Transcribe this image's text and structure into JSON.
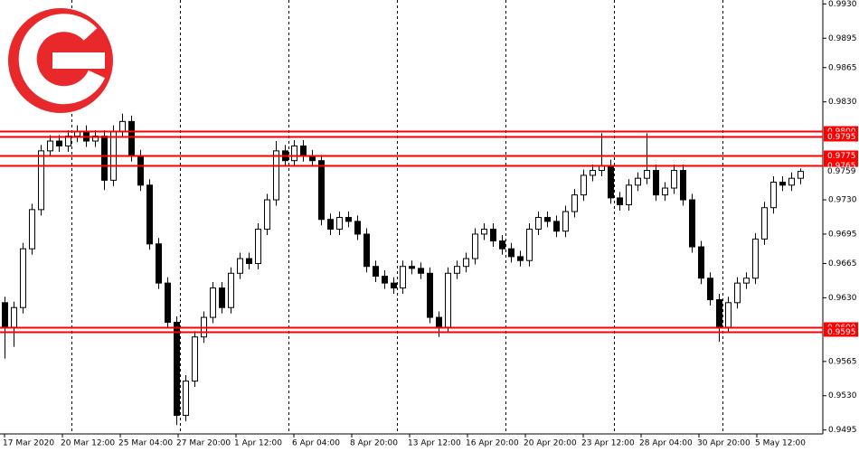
{
  "chart_data": {
    "type": "candlestick",
    "ylim": [
      0.9491,
      0.9934
    ],
    "xlim": [
      -0.5,
      90.5
    ],
    "yticks": [
      {
        "value": 0.993,
        "label": "0.9930"
      },
      {
        "value": 0.9895,
        "label": "0.9895"
      },
      {
        "value": 0.9865,
        "label": "0.9865"
      },
      {
        "value": 0.983,
        "label": "0.9830"
      },
      {
        "value": 0.973,
        "label": "0.9730"
      },
      {
        "value": 0.9695,
        "label": "0.9695"
      },
      {
        "value": 0.9665,
        "label": "0.9665"
      },
      {
        "value": 0.963,
        "label": "0.9630"
      },
      {
        "value": 0.9565,
        "label": "0.9565"
      },
      {
        "value": 0.953,
        "label": "0.9530"
      },
      {
        "value": 0.9495,
        "label": "0.9495"
      }
    ],
    "xticks": [
      {
        "value": 0,
        "label": "17 Mar 2020"
      },
      {
        "value": 6.4,
        "label": "20 Mar 12:00"
      },
      {
        "value": 12.8,
        "label": "25 Mar 04:00"
      },
      {
        "value": 19.2,
        "label": "27 Mar 20:00"
      },
      {
        "value": 25.6,
        "label": "1 Apr 12:00"
      },
      {
        "value": 32,
        "label": "6 Apr 04:00"
      },
      {
        "value": 38.4,
        "label": "8 Apr 20:00"
      },
      {
        "value": 44.8,
        "label": "13 Apr 12:00"
      },
      {
        "value": 51.2,
        "label": "16 Apr 20:00"
      },
      {
        "value": 57.6,
        "label": "20 Apr 20:00"
      },
      {
        "value": 64,
        "label": "23 Apr 12:00"
      },
      {
        "value": 70.4,
        "label": "28 Apr 04:00"
      },
      {
        "value": 76.8,
        "label": "30 Apr 20:00"
      },
      {
        "value": 83.2,
        "label": "5 May 12:00"
      }
    ],
    "xgrid": [
      7.4,
      19.4,
      31.4,
      43.4,
      55.4,
      67.4,
      79.4
    ],
    "levels": [
      {
        "value": 0.98,
        "label": "0.9800"
      },
      {
        "value": 0.9795,
        "label": "0.9795"
      },
      {
        "value": 0.9775,
        "label": "0.9775"
      },
      {
        "value": 0.9765,
        "label": "0.9765"
      },
      {
        "value": 0.96,
        "label": "0.9600"
      },
      {
        "value": 0.9595,
        "label": "0.9595"
      }
    ],
    "level_color": "#ff0000",
    "current_price": {
      "value": 0.9759,
      "label": "0.9759"
    },
    "open": [
      0.9625,
      0.96,
      0.962,
      0.968,
      0.972,
      0.978,
      0.979,
      0.9785,
      0.9795,
      0.98,
      0.979,
      0.9795,
      0.975,
      0.98,
      0.981,
      0.9775,
      0.9745,
      0.9685,
      0.9645,
      0.9605,
      0.951,
      0.9545,
      0.959,
      0.961,
      0.964,
      0.962,
      0.9655,
      0.967,
      0.9665,
      0.97,
      0.973,
      0.978,
      0.977,
      0.9785,
      0.9775,
      0.977,
      0.971,
      0.97,
      0.9712,
      0.9708,
      0.9695,
      0.9662,
      0.9652,
      0.9645,
      0.964,
      0.9662,
      0.966,
      0.9655,
      0.961,
      0.96,
      0.9655,
      0.9662,
      0.967,
      0.9695,
      0.97,
      0.9688,
      0.968,
      0.9672,
      0.9668,
      0.97,
      0.9712,
      0.9708,
      0.9698,
      0.9718,
      0.9735,
      0.9755,
      0.976,
      0.9765,
      0.9732,
      0.9725,
      0.9745,
      0.9752,
      0.976,
      0.9735,
      0.9742,
      0.976,
      0.973,
      0.9682,
      0.965,
      0.9628,
      0.96,
      0.9625,
      0.9645,
      0.965,
      0.969,
      0.9722,
      0.9748,
      0.9745,
      0.9752
    ],
    "high": [
      0.9631,
      0.9626,
      0.9686,
      0.9726,
      0.9786,
      0.9796,
      0.9796,
      0.9801,
      0.9806,
      0.9806,
      0.9801,
      0.9801,
      0.9806,
      0.9818,
      0.9816,
      0.9781,
      0.9751,
      0.9691,
      0.9651,
      0.9611,
      0.9551,
      0.9596,
      0.9616,
      0.9646,
      0.9646,
      0.9661,
      0.9676,
      0.9676,
      0.9706,
      0.9736,
      0.979,
      0.9786,
      0.9791,
      0.9791,
      0.9781,
      0.9776,
      0.9716,
      0.9718,
      0.9718,
      0.9714,
      0.9701,
      0.9668,
      0.9658,
      0.9651,
      0.9668,
      0.9668,
      0.9666,
      0.9661,
      0.9616,
      0.9661,
      0.9668,
      0.9676,
      0.9701,
      0.9706,
      0.9706,
      0.9694,
      0.9686,
      0.9678,
      0.9706,
      0.9718,
      0.9718,
      0.9714,
      0.9724,
      0.9741,
      0.9761,
      0.9766,
      0.9798,
      0.9771,
      0.9738,
      0.9751,
      0.9758,
      0.9798,
      0.9766,
      0.9748,
      0.9766,
      0.9766,
      0.9736,
      0.9688,
      0.9656,
      0.9634,
      0.9631,
      0.9651,
      0.9656,
      0.9696,
      0.9728,
      0.9754,
      0.9754,
      0.9758,
      0.9762
    ],
    "low": [
      0.9568,
      0.958,
      0.9614,
      0.9674,
      0.9714,
      0.9774,
      0.9779,
      0.9779,
      0.9789,
      0.9784,
      0.9784,
      0.974,
      0.9744,
      0.9794,
      0.9769,
      0.9739,
      0.9679,
      0.9639,
      0.9599,
      0.95,
      0.9504,
      0.9539,
      0.9584,
      0.9604,
      0.9614,
      0.9614,
      0.9649,
      0.9659,
      0.9659,
      0.9694,
      0.9724,
      0.9764,
      0.9764,
      0.9769,
      0.9764,
      0.9704,
      0.9694,
      0.9694,
      0.9702,
      0.9689,
      0.9656,
      0.9646,
      0.9639,
      0.9634,
      0.9634,
      0.9654,
      0.9649,
      0.9604,
      0.959,
      0.9594,
      0.9649,
      0.9656,
      0.9664,
      0.9689,
      0.9682,
      0.9674,
      0.9666,
      0.9662,
      0.9662,
      0.9694,
      0.9702,
      0.9692,
      0.9692,
      0.9712,
      0.9729,
      0.9749,
      0.9754,
      0.9726,
      0.9719,
      0.9719,
      0.9739,
      0.9746,
      0.9729,
      0.9729,
      0.9736,
      0.9724,
      0.9676,
      0.9644,
      0.9622,
      0.9585,
      0.9594,
      0.9619,
      0.9639,
      0.9644,
      0.9684,
      0.9716,
      0.9739,
      0.9739,
      0.9746
    ],
    "close": [
      0.96,
      0.962,
      0.968,
      0.972,
      0.978,
      0.979,
      0.9785,
      0.9795,
      0.98,
      0.979,
      0.9795,
      0.975,
      0.98,
      0.981,
      0.9775,
      0.9745,
      0.9685,
      0.9645,
      0.9605,
      0.951,
      0.9545,
      0.959,
      0.961,
      0.964,
      0.962,
      0.9655,
      0.967,
      0.9665,
      0.97,
      0.973,
      0.978,
      0.977,
      0.9785,
      0.9775,
      0.977,
      0.971,
      0.97,
      0.9712,
      0.9708,
      0.9695,
      0.9662,
      0.9652,
      0.9645,
      0.964,
      0.9662,
      0.966,
      0.9655,
      0.961,
      0.96,
      0.9655,
      0.9662,
      0.967,
      0.9695,
      0.97,
      0.9688,
      0.968,
      0.9672,
      0.9668,
      0.97,
      0.9712,
      0.9708,
      0.9698,
      0.9718,
      0.9735,
      0.9755,
      0.976,
      0.9765,
      0.9732,
      0.9725,
      0.9745,
      0.9752,
      0.976,
      0.9735,
      0.9742,
      0.976,
      0.973,
      0.9682,
      0.965,
      0.9628,
      0.96,
      0.9625,
      0.9645,
      0.965,
      0.969,
      0.9722,
      0.9748,
      0.9745,
      0.9752,
      0.9759
    ]
  }
}
